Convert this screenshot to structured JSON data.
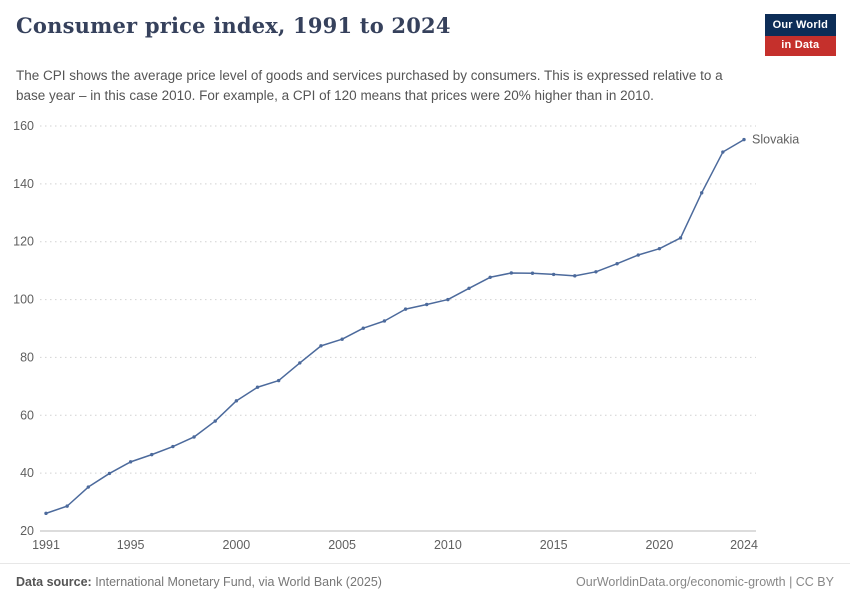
{
  "header": {
    "title": "Consumer price index, 1991 to 2024",
    "subtitle": "The CPI shows the average price level of goods and services purchased by consumers. This is expressed relative to a base year – in this case 2010. For example, a CPI of 120 means that prices were 20% higher than in 2010.",
    "logo": {
      "line1": "Our World",
      "line2": "in Data"
    }
  },
  "chart_data": {
    "type": "line",
    "title": "Consumer price index, 1991 to 2024",
    "xlabel": "",
    "ylabel": "",
    "ylim": [
      20,
      160
    ],
    "yticks": [
      20,
      40,
      60,
      80,
      100,
      120,
      140,
      160
    ],
    "xticks": [
      1991,
      1995,
      2000,
      2005,
      2010,
      2015,
      2020,
      2024
    ],
    "grid": "dotted-horizontal",
    "legend": "end-of-line-label",
    "x": [
      1991,
      1992,
      1993,
      1994,
      1995,
      1996,
      1997,
      1998,
      1999,
      2000,
      2001,
      2002,
      2003,
      2004,
      2005,
      2006,
      2007,
      2008,
      2009,
      2010,
      2011,
      2012,
      2013,
      2014,
      2015,
      2016,
      2017,
      2018,
      2019,
      2020,
      2021,
      2022,
      2023,
      2024
    ],
    "series": [
      {
        "name": "Slovakia",
        "color": "#4c6a9c",
        "values": [
          26.1,
          28.6,
          35.2,
          39.9,
          43.9,
          46.4,
          49.2,
          52.5,
          58.0,
          65.0,
          69.7,
          72.0,
          78.1,
          84.0,
          86.3,
          90.1,
          92.6,
          96.7,
          98.3,
          100.0,
          103.9,
          107.7,
          109.2,
          109.1,
          108.7,
          108.2,
          109.6,
          112.4,
          115.4,
          117.6,
          121.3,
          136.9,
          151.0,
          155.3
        ]
      }
    ],
    "colors": {
      "gridline": "#d2d2d2",
      "axis_line": "#b8b8b8",
      "tick_label": "#606060"
    }
  },
  "footer": {
    "source_label": "Data source:",
    "source_text": " International Monetary Fund, via World Bank (2025)",
    "right_text": "OurWorldinData.org/economic-growth | CC BY"
  }
}
